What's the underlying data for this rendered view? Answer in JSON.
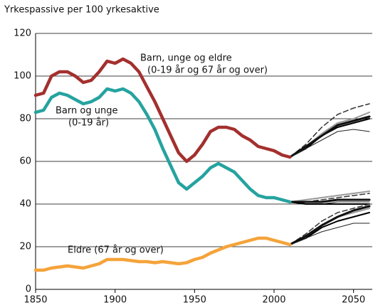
{
  "chart_data": {
    "type": "line",
    "title": "Yrkespassive per 100 yrkesaktive",
    "xlim": [
      1850,
      2060
    ],
    "ylim": [
      0,
      120
    ],
    "xticks": [
      1850,
      1900,
      1950,
      2000,
      2050
    ],
    "yticks": [
      0,
      20,
      40,
      60,
      80,
      100,
      120
    ],
    "grid": true,
    "x": [
      1850,
      1855,
      1860,
      1865,
      1870,
      1875,
      1880,
      1885,
      1890,
      1895,
      1900,
      1905,
      1910,
      1915,
      1920,
      1925,
      1930,
      1935,
      1940,
      1945,
      1950,
      1955,
      1960,
      1965,
      1970,
      1975,
      1980,
      1985,
      1990,
      1995,
      2000,
      2005,
      2010
    ],
    "series": [
      {
        "name": "Barn, unge og eldre",
        "note": "(0-19 år og 67 år og over)",
        "color": "#a3302e",
        "values": [
          91,
          92,
          100,
          102,
          102,
          100,
          97,
          98,
          102,
          107,
          106,
          108,
          106,
          102,
          95,
          88,
          80,
          72,
          64,
          60,
          63,
          68,
          74,
          76,
          76,
          75,
          72,
          70,
          67,
          66,
          65,
          63,
          62
        ]
      },
      {
        "name": "Barn og unge",
        "note": "(0-19 år)",
        "color": "#25a3a0",
        "values": [
          83,
          84,
          90,
          92,
          91,
          89,
          87,
          88,
          90,
          94,
          93,
          94,
          92,
          88,
          82,
          75,
          66,
          58,
          50,
          47,
          50,
          53,
          57,
          59,
          57,
          55,
          51,
          47,
          44,
          43,
          43,
          42,
          41
        ]
      },
      {
        "name": "Eldre (67 år og over)",
        "color": "#f5a33a",
        "values": [
          9,
          9,
          10,
          10.5,
          11,
          10.5,
          10,
          11,
          12,
          14,
          14,
          14,
          13.5,
          13,
          13,
          12.5,
          13,
          12.5,
          12,
          12.5,
          14,
          15,
          17,
          18.5,
          20,
          21,
          22,
          23,
          24,
          24,
          23,
          22,
          21
        ]
      }
    ],
    "projection_x": [
      2010,
      2020,
      2030,
      2040,
      2050,
      2060
    ],
    "projections": [
      {
        "color": "#333333",
        "dash": true,
        "width": 1.5,
        "values": [
          62,
          68,
          76,
          82,
          85,
          87
        ]
      },
      {
        "color": "#999999",
        "dash": false,
        "width": 2,
        "values": [
          62,
          67,
          73,
          78,
          80,
          83
        ]
      },
      {
        "color": "#000000",
        "dash": false,
        "width": 2,
        "values": [
          62,
          66,
          72,
          76,
          78,
          80
        ]
      },
      {
        "color": "#111111",
        "dash": false,
        "width": 3,
        "values": [
          62,
          67,
          72,
          77,
          79,
          81
        ]
      },
      {
        "color": "#222222",
        "dash": false,
        "width": 1,
        "values": [
          62,
          66,
          70,
          74,
          75,
          74
        ]
      },
      {
        "color": "#999999",
        "dash": false,
        "width": 2,
        "values": [
          41,
          42,
          43,
          44,
          45,
          46
        ]
      },
      {
        "color": "#333333",
        "dash": true,
        "width": 1.5,
        "values": [
          41,
          41,
          42,
          43,
          44,
          45
        ]
      },
      {
        "color": "#111111",
        "dash": false,
        "width": 3,
        "values": [
          41,
          41,
          41,
          42,
          42,
          42
        ]
      },
      {
        "color": "#222222",
        "dash": false,
        "width": 1,
        "values": [
          41,
          40,
          40,
          41,
          41,
          41
        ]
      },
      {
        "color": "#000000",
        "dash": false,
        "width": 2,
        "values": [
          41,
          40,
          40,
          40,
          40,
          40
        ]
      },
      {
        "color": "#333333",
        "dash": true,
        "width": 1.5,
        "values": [
          21,
          26,
          32,
          36,
          38,
          40
        ]
      },
      {
        "color": "#999999",
        "dash": false,
        "width": 2,
        "values": [
          21,
          25,
          30,
          34,
          36,
          38
        ]
      },
      {
        "color": "#111111",
        "dash": false,
        "width": 3,
        "values": [
          21,
          25,
          30,
          34,
          37,
          39
        ]
      },
      {
        "color": "#000000",
        "dash": false,
        "width": 2,
        "values": [
          21,
          24,
          29,
          32,
          34,
          36
        ]
      },
      {
        "color": "#222222",
        "dash": false,
        "width": 1,
        "values": [
          21,
          24,
          27,
          29,
          31,
          31
        ]
      }
    ]
  }
}
